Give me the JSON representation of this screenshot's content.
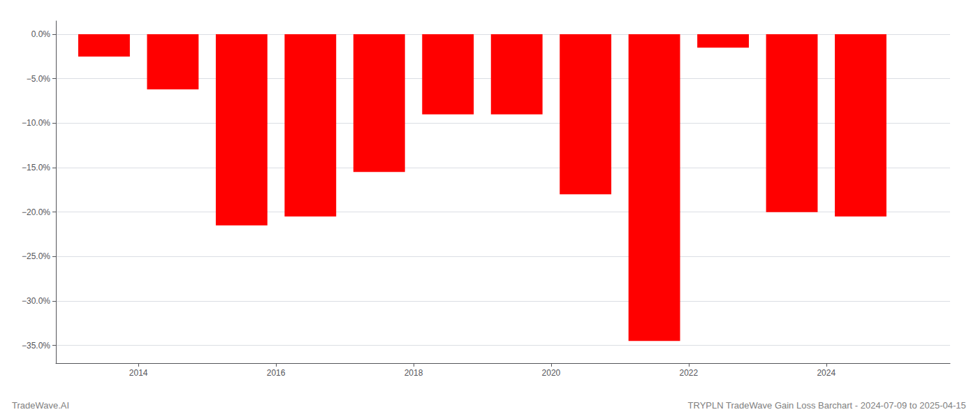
{
  "chart_data": {
    "type": "bar",
    "title": "TRYPLN TradeWave Gain Loss Barchart - 2024-07-09 to 2025-04-15",
    "annotations": [
      "TradeWave.AI"
    ],
    "x": [
      2013.5,
      2014.5,
      2015.5,
      2016.5,
      2017.5,
      2018.5,
      2019.5,
      2020.5,
      2021.5,
      2022.5,
      2023.5,
      2024.5
    ],
    "values": [
      -2.5,
      -6.2,
      -21.5,
      -20.5,
      -15.5,
      -9.0,
      -9.0,
      -18.0,
      -34.5,
      -1.5,
      -20.0,
      -20.5
    ],
    "color": "#ff0000",
    "xlim": [
      2012.8,
      2025.8
    ],
    "xticks": [
      2014,
      2016,
      2018,
      2020,
      2022,
      2024
    ],
    "ylim": [
      -37,
      1.5
    ],
    "yticks": [
      {
        "value": 0.0,
        "label": "0.0%"
      },
      {
        "value": -5.0,
        "label": "−5.0%"
      },
      {
        "value": -10.0,
        "label": "−10.0%"
      },
      {
        "value": -15.0,
        "label": "−15.0%"
      },
      {
        "value": -20.0,
        "label": "−20.0%"
      },
      {
        "value": -25.0,
        "label": "−25.0%"
      },
      {
        "value": -30.0,
        "label": "−30.0%"
      },
      {
        "value": -35.0,
        "label": "−35.0%"
      }
    ],
    "grid": true
  }
}
